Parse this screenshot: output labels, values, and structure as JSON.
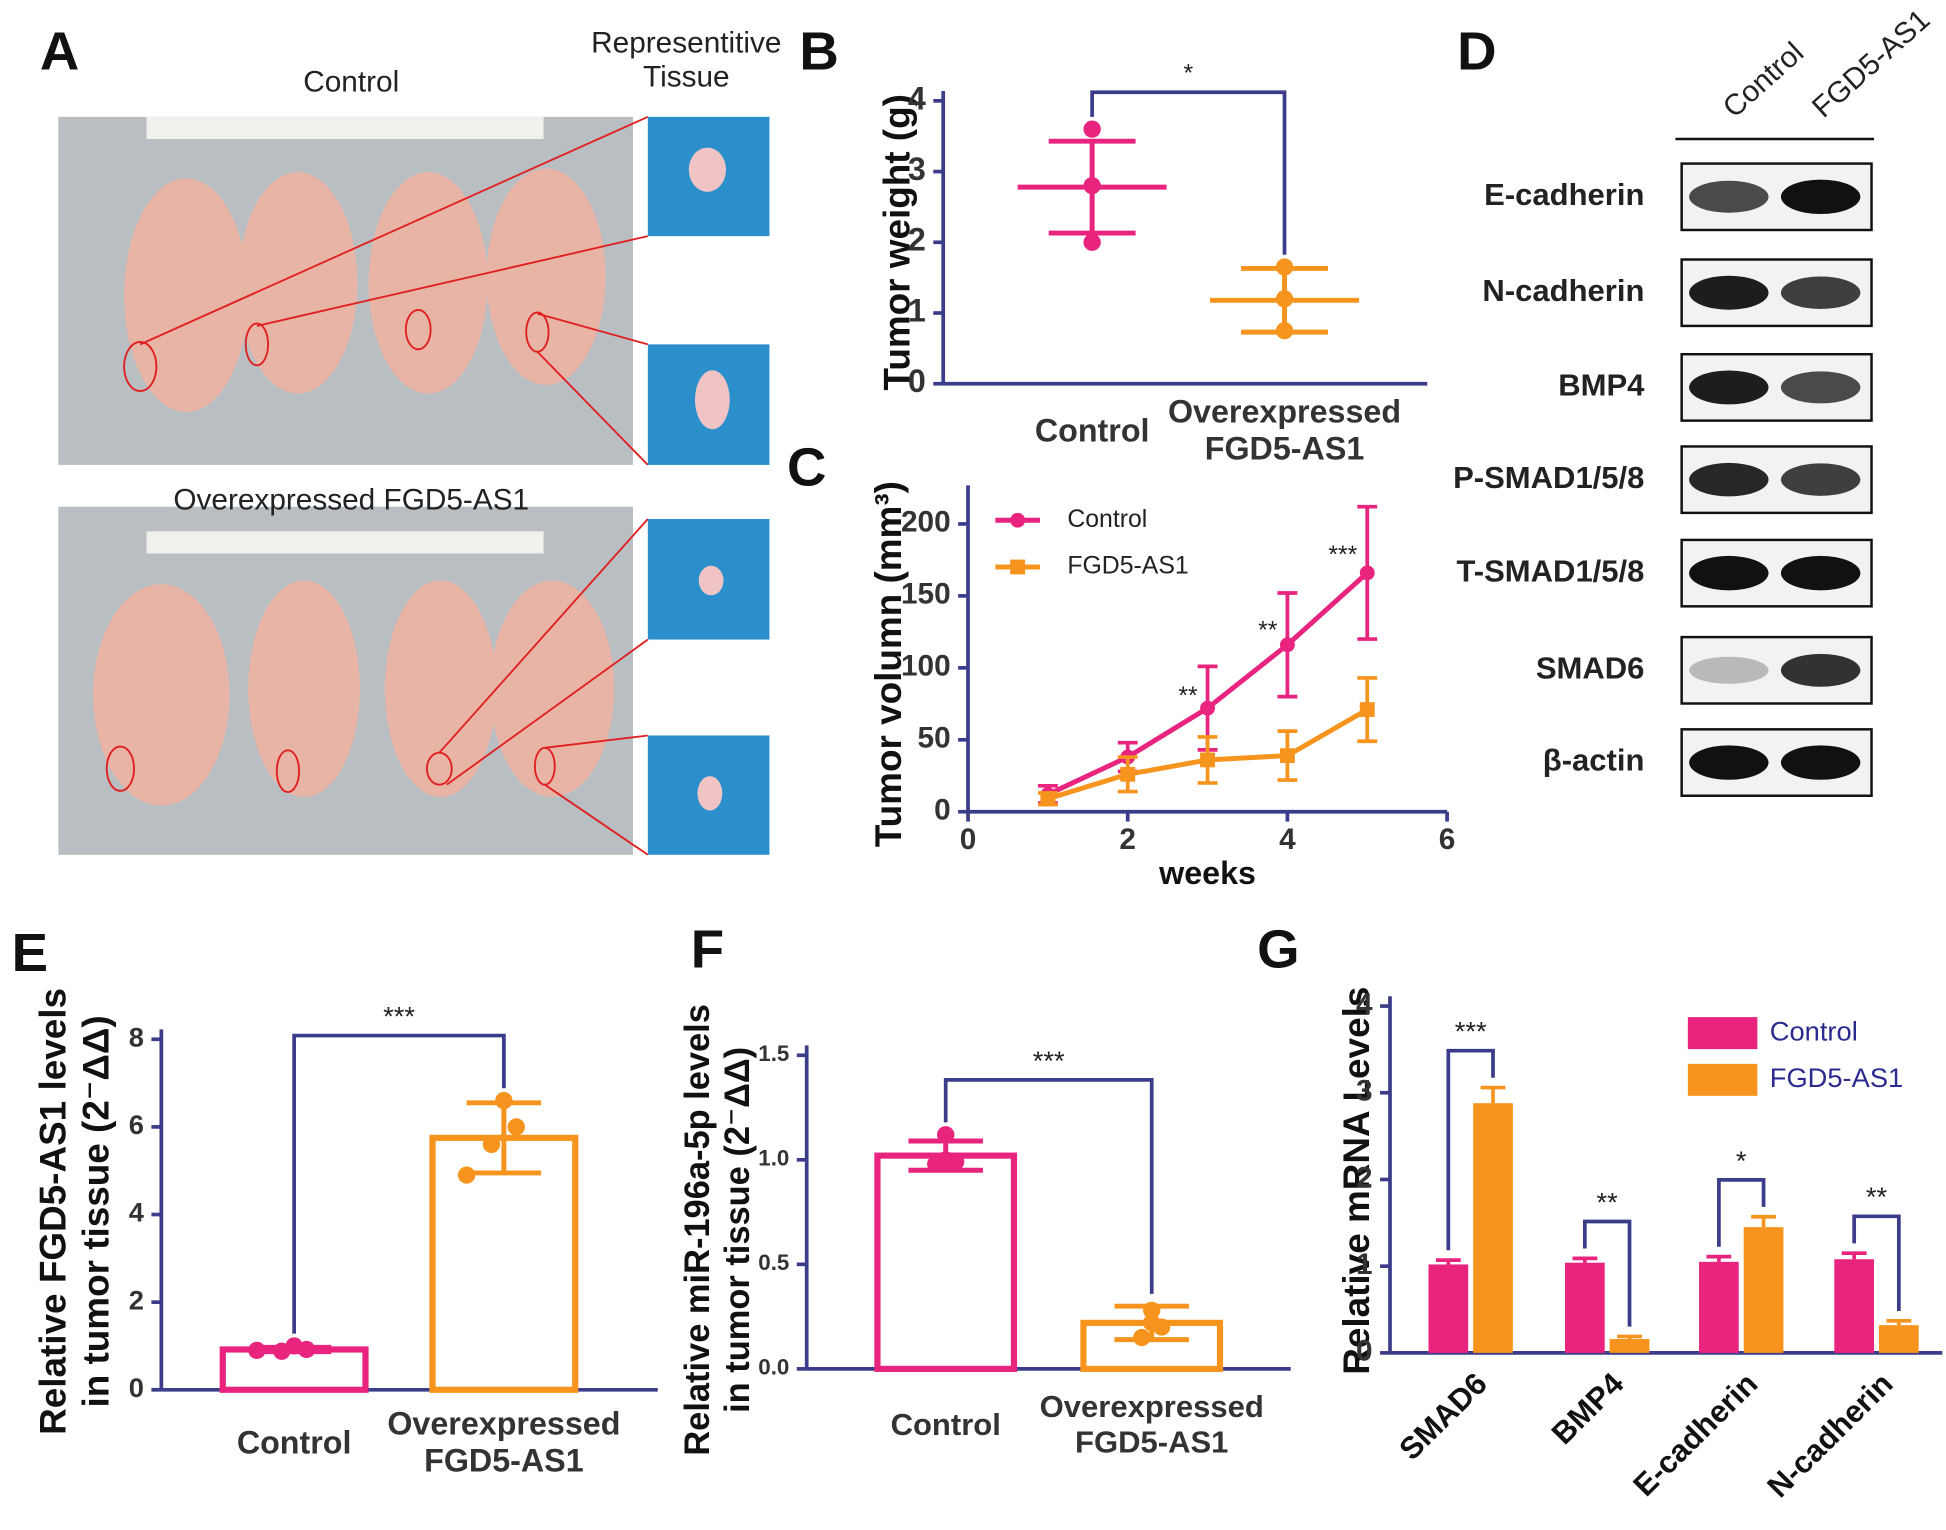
{
  "panel_a": {
    "panel_label": "A",
    "top_label": "Control",
    "tissue_label": "Representitive\nTissue",
    "bottom_label": "Overexpressed FGD5-AS1"
  },
  "panel_d": {
    "panel_label": "D",
    "columns": [
      "Control",
      "FGD5-AS1"
    ],
    "rows": [
      "E-cadherin",
      "N-cadherin",
      "BMP4",
      "P-SMAD1/5/8",
      "T-SMAD1/5/8",
      "SMAD6",
      "β-actin"
    ]
  },
  "chart_data": [
    {
      "type": "dotplot",
      "panel_label": "B",
      "y_label": "Tumor weight (g)",
      "categories": [
        "Control",
        "Overexpressed\nFGD5-AS1"
      ],
      "values": [
        2.78,
        1.18
      ],
      "errors": [
        0.65,
        0.45
      ],
      "points": [
        [
          3.6,
          2.8,
          2.0
        ],
        [
          1.65,
          1.2,
          0.75
        ]
      ],
      "colors": [
        "#e8247f",
        "#f7941d"
      ],
      "significance": "*",
      "ylim": [
        0,
        4
      ],
      "yticks": [
        0,
        1,
        2,
        3,
        4
      ]
    },
    {
      "type": "line",
      "panel_label": "C",
      "x_label": "weeks",
      "y_label": "Tumor volumn (mm³)",
      "x": [
        1,
        2,
        3,
        4,
        5
      ],
      "series": [
        {
          "name": "Control",
          "color": "#e8247f",
          "marker": "circle",
          "values": [
            12,
            38,
            72,
            116,
            166
          ],
          "errors": [
            6,
            10,
            29,
            36,
            46
          ]
        },
        {
          "name": "FGD5-AS1",
          "color": "#f7941d",
          "marker": "square",
          "values": [
            9,
            26,
            36,
            39,
            71
          ],
          "errors": [
            4,
            12,
            16,
            17,
            22
          ]
        }
      ],
      "significance": [
        null,
        null,
        "**",
        "**",
        "***"
      ],
      "xlim": [
        0,
        6
      ],
      "xticks": [
        0,
        2,
        4,
        6
      ],
      "ylim": [
        0,
        220
      ],
      "yticks": [
        0,
        50,
        100,
        150,
        200
      ]
    },
    {
      "type": "bar",
      "panel_label": "E",
      "y_label": "Relative FGD5-AS1 levels\nin tumor tissue (2⁻ΔΔ)",
      "categories": [
        "Control",
        "Overexpressed\nFGD5-AS1"
      ],
      "values": [
        0.92,
        5.75
      ],
      "errors": [
        0.05,
        0.8
      ],
      "points": [
        [
          0.9,
          0.88,
          0.92,
          1.0
        ],
        [
          4.9,
          5.6,
          6.0,
          6.6
        ]
      ],
      "colors": [
        "#e8247f",
        "#f7941d"
      ],
      "significance": "***",
      "ylim": [
        0,
        8
      ],
      "yticks": [
        0,
        2,
        4,
        6,
        8
      ]
    },
    {
      "type": "bar",
      "panel_label": "F",
      "y_label": "Relative miR-196a-5p levels\nin tumor tissue (2⁻ΔΔ)",
      "categories": [
        "Control",
        "Overexpressed\nFGD5-AS1"
      ],
      "values": [
        1.02,
        0.22
      ],
      "errors": [
        0.07,
        0.08
      ],
      "points": [
        [
          0.98,
          1.12,
          1.0,
          0.99
        ],
        [
          0.15,
          0.22,
          0.28,
          0.2
        ]
      ],
      "colors": [
        "#e8247f",
        "#f7941d"
      ],
      "significance": "***",
      "ylim": [
        0,
        1.5
      ],
      "yticks": [
        {
          "value": 0,
          "label": "0.0"
        },
        {
          "value": 0.5,
          "label": "0.5"
        },
        {
          "value": 1,
          "label": "1.0"
        },
        {
          "value": 1.5,
          "label": "1.5"
        }
      ]
    },
    {
      "type": "bar",
      "panel_label": "G",
      "y_label": "Relative mRNA Levels",
      "categories": [
        "SMAD6",
        "BMP4",
        "E-cadherin",
        "N-cadherin"
      ],
      "series": [
        {
          "name": "Control",
          "color": "#e8247f",
          "values": [
            1.02,
            1.04,
            1.05,
            1.08
          ],
          "errors": [
            0.05,
            0.05,
            0.06,
            0.07
          ]
        },
        {
          "name": "FGD5-AS1",
          "color": "#f7941d",
          "values": [
            2.88,
            0.16,
            1.45,
            0.32
          ],
          "errors": [
            0.18,
            0.03,
            0.12,
            0.05
          ]
        }
      ],
      "significance": [
        "***",
        "**",
        "*",
        "**"
      ],
      "ylim": [
        0,
        4
      ],
      "yticks": [
        0,
        1,
        2,
        3,
        4
      ]
    }
  ]
}
